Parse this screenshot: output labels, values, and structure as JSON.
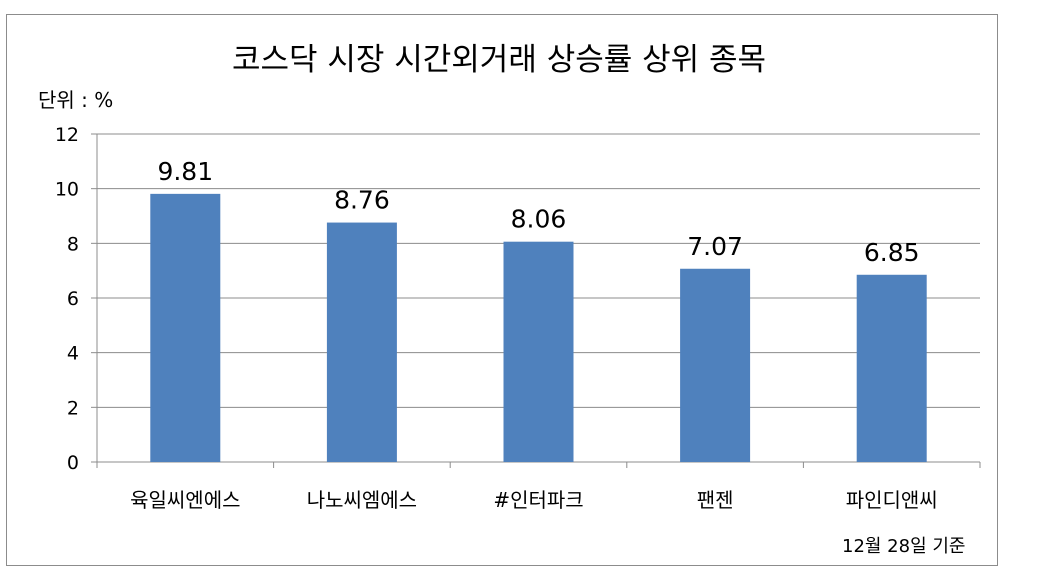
{
  "chart_data": {
    "type": "bar",
    "title": "코스닥 시장  시간외거래 상승률 상위 종목",
    "unit_label": "단위 : %",
    "footnote": "12월 28일 기준",
    "categories": [
      "육일씨엔에스",
      "나노씨엠에스",
      "#인터파크",
      "팬젠",
      "파인디앤씨"
    ],
    "values": [
      9.81,
      8.76,
      8.06,
      7.07,
      6.85
    ],
    "data_labels": [
      "9.81",
      "8.76",
      "8.06",
      "7.07",
      "6.85"
    ],
    "ylim": [
      0,
      12
    ],
    "yticks": [
      0,
      2,
      4,
      6,
      8,
      10,
      12
    ],
    "grid": true,
    "legend": "none",
    "bar_color": "#4f81bd"
  }
}
